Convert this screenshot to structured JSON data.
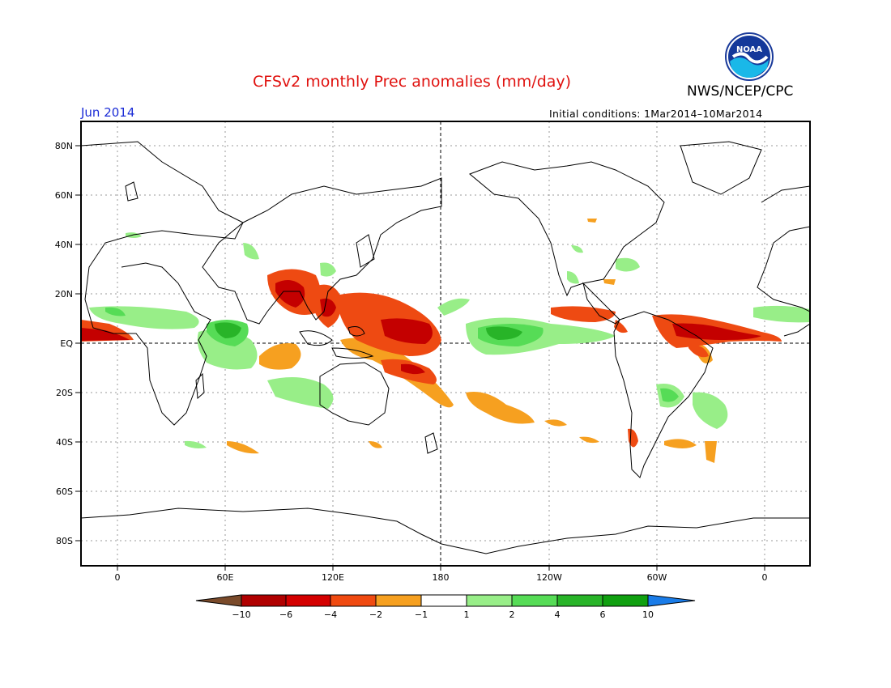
{
  "title": "CFSv2 monthly Prec anomalies (mm/day)",
  "agency": "NWS/NCEP/CPC",
  "logo_text": "NOAA",
  "valid_month": "Jun 2014",
  "initial_conditions": "Initial conditions: 1Mar2014–10Mar2014",
  "lat_labels": [
    "80N",
    "60N",
    "40N",
    "20N",
    "EQ",
    "20S",
    "40S",
    "60S",
    "80S"
  ],
  "lon_labels": [
    "0",
    "60E",
    "120E",
    "180",
    "120W",
    "60W",
    "0"
  ],
  "colorbar": {
    "tick_labels": [
      "−10",
      "−6",
      "−4",
      "−2",
      "−1",
      "1",
      "2",
      "4",
      "6",
      "10"
    ],
    "colors": [
      "#7a4a2a",
      "#b00000",
      "#d40000",
      "#f04a10",
      "#f6a020",
      "#ffffff",
      "#98ee88",
      "#56dc56",
      "#28b428",
      "#10a010",
      "#1a7ce8"
    ]
  },
  "anomaly_colors": {
    "dry_strong": "#c40000",
    "dry": "#ee4a12",
    "dry_weak": "#f6a020",
    "wet_weak": "#98ee88",
    "wet": "#56dc56",
    "wet_strong": "#28b428"
  }
}
